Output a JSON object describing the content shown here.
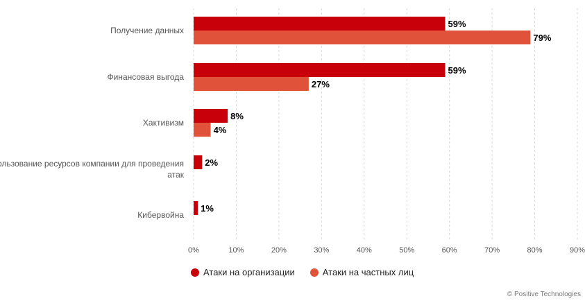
{
  "chart_data": {
    "type": "bar",
    "orientation": "horizontal",
    "categories": [
      "Получение данных",
      "Финансовая выгода",
      "Хактивизм",
      "Использование ресурсов компании для проведения атак",
      "Кибервойна"
    ],
    "series": [
      {
        "name": "Атаки на организации",
        "values": [
          59,
          59,
          8,
          2,
          1
        ],
        "labels": [
          "59%",
          "59%",
          "8%",
          "2%",
          "1%"
        ],
        "color": "#c8000a"
      },
      {
        "name": "Атаки на частных лиц",
        "values": [
          79,
          27,
          4,
          null,
          null
        ],
        "labels": [
          "79%",
          "27%",
          "4%",
          "",
          ""
        ],
        "color": "#e0533a"
      }
    ],
    "xlim": [
      0,
      90
    ],
    "xticks": [
      "0%",
      "10%",
      "20%",
      "30%",
      "40%",
      "50%",
      "60%",
      "70%",
      "80%",
      "90%"
    ],
    "grid": true,
    "legend_position": "bottom"
  },
  "legend": {
    "org_label": "Атаки на организации",
    "private_label": "Атаки на частных лиц"
  },
  "colors": {
    "org": "#c8000a",
    "private": "#e0533a"
  },
  "credit": "© Positive Technologies"
}
